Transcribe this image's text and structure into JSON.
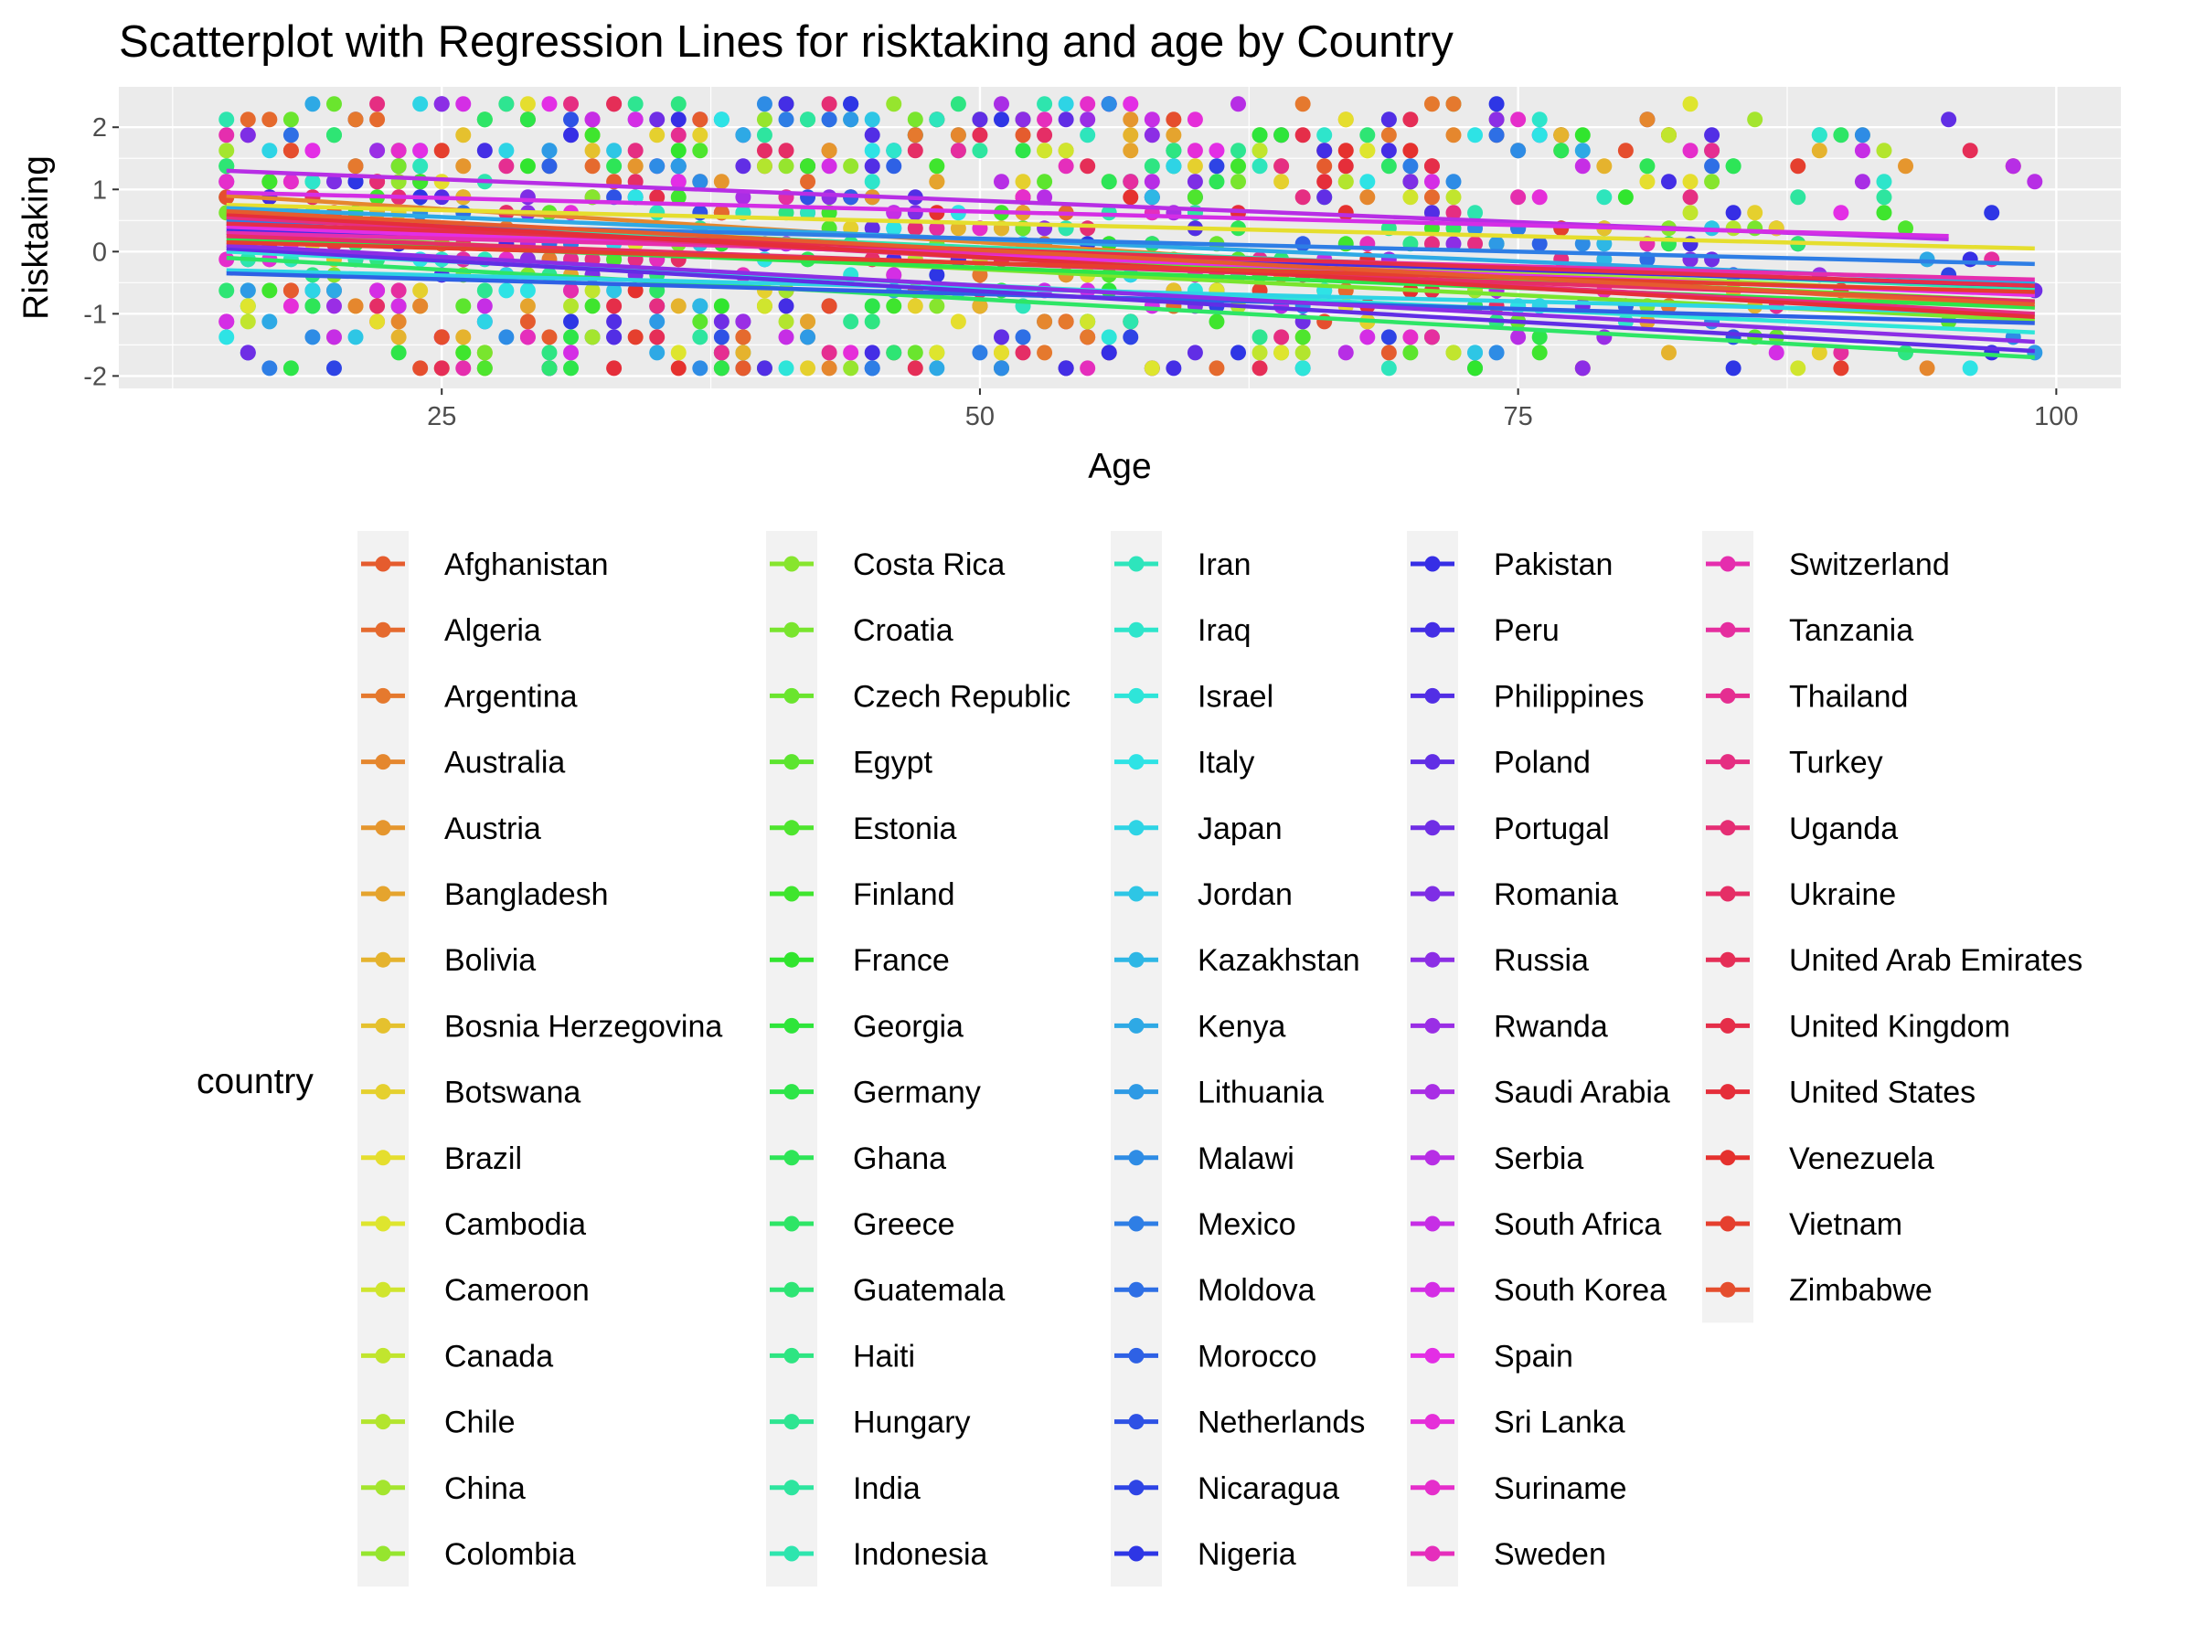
{
  "chart_data": {
    "type": "scatter",
    "title": "Scatterplot with Regression Lines for risktaking and age by Country",
    "xlabel": "Age",
    "ylabel": "Risktaking",
    "xlim": [
      10,
      103
    ],
    "ylim": [
      -2.2,
      2.65
    ],
    "x_ticks": [
      25,
      50,
      75,
      100
    ],
    "y_ticks": [
      -2,
      -1,
      0,
      1,
      2
    ],
    "grid": true,
    "legend_title": "country",
    "legend_position": "right",
    "countries": [
      "Afghanistan",
      "Algeria",
      "Argentina",
      "Australia",
      "Austria",
      "Bangladesh",
      "Bolivia",
      "Bosnia Herzegovina",
      "Botswana",
      "Brazil",
      "Cambodia",
      "Cameroon",
      "Canada",
      "Chile",
      "China",
      "Colombia",
      "Costa Rica",
      "Croatia",
      "Czech Republic",
      "Egypt",
      "Estonia",
      "Finland",
      "France",
      "Georgia",
      "Germany",
      "Ghana",
      "Greece",
      "Guatemala",
      "Haiti",
      "Hungary",
      "India",
      "Indonesia",
      "Iran",
      "Iraq",
      "Israel",
      "Italy",
      "Japan",
      "Jordan",
      "Kazakhstan",
      "Kenya",
      "Lithuania",
      "Malawi",
      "Mexico",
      "Moldova",
      "Morocco",
      "Netherlands",
      "Nicaragua",
      "Nigeria",
      "Pakistan",
      "Peru",
      "Philippines",
      "Poland",
      "Portugal",
      "Romania",
      "Russia",
      "Rwanda",
      "Saudi Arabia",
      "Serbia",
      "South Africa",
      "South Korea",
      "Spain",
      "Sri Lanka",
      "Suriname",
      "Sweden",
      "Switzerland",
      "Tanzania",
      "Thailand",
      "Turkey",
      "Uganda",
      "Ukraine",
      "United Arab Emirates",
      "United Kingdom",
      "United States",
      "Venezuela",
      "Vietnam",
      "Zimbabwe"
    ],
    "regression_lines": [
      {
        "country": "Australia",
        "x": [
          15,
          99
        ],
        "y": [
          0.9,
          -0.9
        ]
      },
      {
        "country": "Brazil",
        "x": [
          15,
          99
        ],
        "y": [
          0.75,
          0.05
        ]
      },
      {
        "country": "China",
        "x": [
          15,
          99
        ],
        "y": [
          0.6,
          -0.7
        ]
      },
      {
        "country": "Croatia",
        "x": [
          15,
          99
        ],
        "y": [
          0.3,
          -1.1
        ]
      },
      {
        "country": "Egypt",
        "x": [
          15,
          99
        ],
        "y": [
          0.45,
          -0.8
        ]
      },
      {
        "country": "Germany",
        "x": [
          15,
          99
        ],
        "y": [
          0.2,
          -0.9
        ]
      },
      {
        "country": "Greece",
        "x": [
          15,
          99
        ],
        "y": [
          -0.1,
          -1.7
        ]
      },
      {
        "country": "Indonesia",
        "x": [
          15,
          99
        ],
        "y": [
          0.55,
          -0.6
        ]
      },
      {
        "country": "Israel",
        "x": [
          15,
          99
        ],
        "y": [
          0.0,
          -1.3
        ]
      },
      {
        "country": "Japan",
        "x": [
          15,
          99
        ],
        "y": [
          -0.3,
          -1.0
        ]
      },
      {
        "country": "Kenya",
        "x": [
          15,
          99
        ],
        "y": [
          0.7,
          -0.5
        ]
      },
      {
        "country": "Mexico",
        "x": [
          15,
          99
        ],
        "y": [
          0.5,
          -0.2
        ]
      },
      {
        "country": "Morocco",
        "x": [
          15,
          99
        ],
        "y": [
          -0.35,
          -1.15
        ]
      },
      {
        "country": "Peru",
        "x": [
          15,
          99
        ],
        "y": [
          0.35,
          -0.55
        ]
      },
      {
        "country": "Poland",
        "x": [
          15,
          99
        ],
        "y": [
          0.05,
          -1.6
        ]
      },
      {
        "country": "Russia",
        "x": [
          15,
          99
        ],
        "y": [
          0.1,
          -1.45
        ]
      },
      {
        "country": "Serbia",
        "x": [
          15,
          95
        ],
        "y": [
          1.3,
          0.2
        ]
      },
      {
        "country": "South Korea",
        "x": [
          15,
          95
        ],
        "y": [
          0.95,
          0.25
        ]
      },
      {
        "country": "Spain",
        "x": [
          15,
          99
        ],
        "y": [
          0.4,
          -0.7
        ]
      },
      {
        "country": "Switzerland",
        "x": [
          15,
          99
        ],
        "y": [
          0.3,
          -0.45
        ]
      },
      {
        "country": "Turkey",
        "x": [
          15,
          99
        ],
        "y": [
          0.55,
          -1.0
        ]
      },
      {
        "country": "Ukraine",
        "x": [
          15,
          99
        ],
        "y": [
          0.25,
          -0.8
        ]
      },
      {
        "country": "United Kingdom",
        "x": [
          15,
          99
        ],
        "y": [
          0.45,
          -0.55
        ]
      },
      {
        "country": "United States",
        "x": [
          15,
          99
        ],
        "y": [
          0.6,
          -1.05
        ]
      },
      {
        "country": "Vietnam",
        "x": [
          15,
          99
        ],
        "y": [
          0.15,
          -0.65
        ]
      },
      {
        "country": "Afghanistan",
        "x": [
          15,
          99
        ],
        "y": [
          0.65,
          -0.85
        ]
      }
    ]
  }
}
